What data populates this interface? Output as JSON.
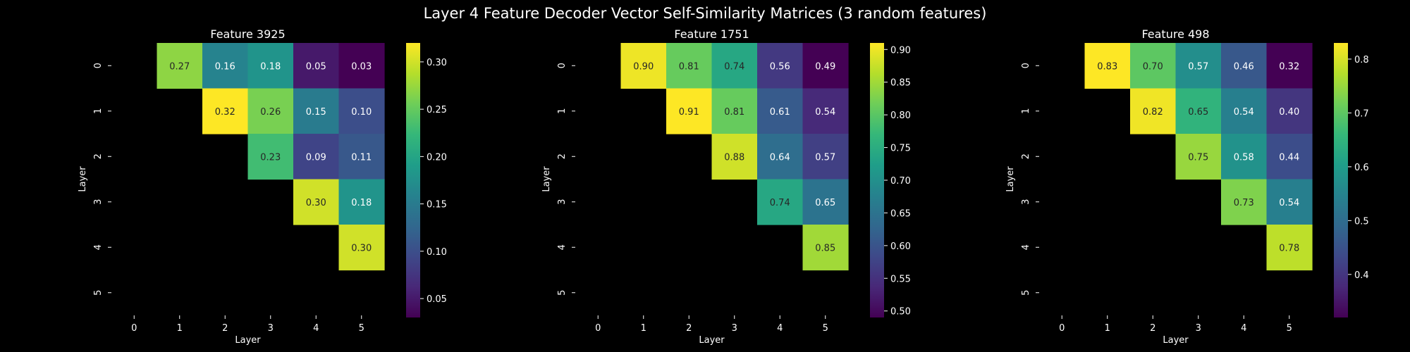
{
  "suptitle": "Layer 4 Feature Decoder Vector Self-Similarity Matrices (3 random features)",
  "colormap": {
    "name": "viridis",
    "stops": [
      "#440154",
      "#482878",
      "#3e4989",
      "#31688e",
      "#26828e",
      "#1f9e89",
      "#35b779",
      "#6ece58",
      "#b5de2b",
      "#fde725"
    ]
  },
  "chart_data": [
    {
      "type": "heatmap",
      "title": "Feature 3925",
      "xlabel": "Layer",
      "ylabel": "Layer",
      "x_ticks": [
        "0",
        "1",
        "2",
        "3",
        "4",
        "5"
      ],
      "y_ticks": [
        "0",
        "1",
        "2",
        "3",
        "4",
        "5"
      ],
      "matrix": [
        [
          null,
          0.27,
          0.16,
          0.18,
          0.05,
          0.03
        ],
        [
          null,
          null,
          0.32,
          0.26,
          0.15,
          0.1
        ],
        [
          null,
          null,
          null,
          0.23,
          0.09,
          0.11
        ],
        [
          null,
          null,
          null,
          null,
          0.3,
          0.18
        ],
        [
          null,
          null,
          null,
          null,
          null,
          0.3
        ],
        [
          null,
          null,
          null,
          null,
          null,
          null
        ]
      ],
      "vmin": 0.03,
      "vmax": 0.32,
      "colorbar_ticks": [
        "0.05",
        "0.10",
        "0.15",
        "0.20",
        "0.25",
        "0.30"
      ]
    },
    {
      "type": "heatmap",
      "title": "Feature 1751",
      "xlabel": "Layer",
      "ylabel": "Layer",
      "x_ticks": [
        "0",
        "1",
        "2",
        "3",
        "4",
        "5"
      ],
      "y_ticks": [
        "0",
        "1",
        "2",
        "3",
        "4",
        "5"
      ],
      "matrix": [
        [
          null,
          0.9,
          0.81,
          0.74,
          0.56,
          0.49
        ],
        [
          null,
          null,
          0.91,
          0.81,
          0.61,
          0.54
        ],
        [
          null,
          null,
          null,
          0.88,
          0.64,
          0.57
        ],
        [
          null,
          null,
          null,
          null,
          0.74,
          0.65
        ],
        [
          null,
          null,
          null,
          null,
          null,
          0.85
        ],
        [
          null,
          null,
          null,
          null,
          null,
          null
        ]
      ],
      "vmin": 0.49,
      "vmax": 0.91,
      "colorbar_ticks": [
        "0.50",
        "0.55",
        "0.60",
        "0.65",
        "0.70",
        "0.75",
        "0.80",
        "0.85",
        "0.90"
      ]
    },
    {
      "type": "heatmap",
      "title": "Feature 498",
      "xlabel": "Layer",
      "ylabel": "Layer",
      "x_ticks": [
        "0",
        "1",
        "2",
        "3",
        "4",
        "5"
      ],
      "y_ticks": [
        "0",
        "1",
        "2",
        "3",
        "4",
        "5"
      ],
      "matrix": [
        [
          null,
          0.83,
          0.7,
          0.57,
          0.46,
          0.32
        ],
        [
          null,
          null,
          0.82,
          0.65,
          0.54,
          0.4
        ],
        [
          null,
          null,
          null,
          0.75,
          0.58,
          0.44
        ],
        [
          null,
          null,
          null,
          null,
          0.73,
          0.54
        ],
        [
          null,
          null,
          null,
          null,
          null,
          0.78
        ],
        [
          null,
          null,
          null,
          null,
          null,
          null
        ]
      ],
      "vmin": 0.32,
      "vmax": 0.83,
      "colorbar_ticks": [
        "0.4",
        "0.5",
        "0.6",
        "0.7",
        "0.8"
      ]
    }
  ]
}
